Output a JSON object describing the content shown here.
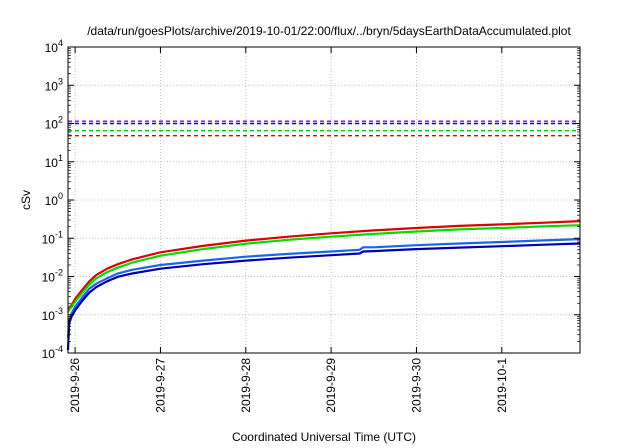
{
  "chart_data": {
    "type": "line",
    "title": "/data/run/goesPlots/archive/2019-10-01/22:00/flux/../bryn/5daysEarthDataAccumulated.plot",
    "xlabel": "Coordinated Universal Time (UTC)",
    "ylabel": "cSv",
    "yscale": "log",
    "ylim": [
      0.0001,
      10000
    ],
    "xlim": [
      "2019-09-25T22:00",
      "2019-10-01T22:00"
    ],
    "grid": true,
    "x_ticks": [
      "2019-9-26",
      "2019-9-27",
      "2019-9-28",
      "2019-9-29",
      "2019-9-30",
      "2019-10-1"
    ],
    "y_ticks": [
      {
        "value": 0.0001,
        "base": "10",
        "exp": "-4"
      },
      {
        "value": 0.001,
        "base": "10",
        "exp": "-3"
      },
      {
        "value": 0.01,
        "base": "10",
        "exp": "-2"
      },
      {
        "value": 0.1,
        "base": "10",
        "exp": "-1"
      },
      {
        "value": 1,
        "base": "10",
        "exp": "0"
      },
      {
        "value": 10,
        "base": "10",
        "exp": "1"
      },
      {
        "value": 100,
        "base": "10",
        "exp": "2"
      },
      {
        "value": 1000,
        "base": "10",
        "exp": "3"
      },
      {
        "value": 10000,
        "base": "10",
        "exp": "4"
      }
    ],
    "thresholds": [
      {
        "value": 115,
        "color": "#9900cc"
      },
      {
        "value": 100,
        "color": "#0000cc"
      },
      {
        "value": 65,
        "color": "#00cc00"
      },
      {
        "value": 48,
        "color": "#dd0000"
      }
    ],
    "series": [
      {
        "color": "#dd0000",
        "x": [
          "2019-09-25T22:00",
          "2019-09-25T23:00",
          "2019-09-26T00:00",
          "2019-09-26T02:00",
          "2019-09-26T04:00",
          "2019-09-26T06:00",
          "2019-09-26T09:00",
          "2019-09-26T12:00",
          "2019-09-26T16:00",
          "2019-09-27T00:00",
          "2019-09-27T12:00",
          "2019-09-28T00:00",
          "2019-09-28T12:00",
          "2019-09-29T00:00",
          "2019-09-29T12:00",
          "2019-09-30T00:00",
          "2019-09-30T12:00",
          "2019-10-01T00:00",
          "2019-10-01T12:00",
          "2019-10-01T22:00"
        ],
        "values": [
          0.0014,
          0.0018,
          0.0026,
          0.0045,
          0.0075,
          0.011,
          0.016,
          0.021,
          0.028,
          0.043,
          0.063,
          0.087,
          0.11,
          0.135,
          0.16,
          0.185,
          0.21,
          0.23,
          0.255,
          0.28
        ]
      },
      {
        "color": "#00dd00",
        "x": [
          "2019-09-25T22:00",
          "2019-09-25T23:00",
          "2019-09-26T00:00",
          "2019-09-26T02:00",
          "2019-09-26T04:00",
          "2019-09-26T06:00",
          "2019-09-26T09:00",
          "2019-09-26T12:00",
          "2019-09-26T16:00",
          "2019-09-27T00:00",
          "2019-09-27T12:00",
          "2019-09-28T00:00",
          "2019-09-28T12:00",
          "2019-09-29T00:00",
          "2019-09-29T12:00",
          "2019-09-30T00:00",
          "2019-09-30T12:00",
          "2019-10-01T00:00",
          "2019-10-01T12:00",
          "2019-10-01T22:00"
        ],
        "values": [
          0.0012,
          0.0016,
          0.0022,
          0.0037,
          0.0062,
          0.009,
          0.013,
          0.017,
          0.023,
          0.035,
          0.052,
          0.072,
          0.091,
          0.11,
          0.13,
          0.15,
          0.17,
          0.185,
          0.205,
          0.22
        ]
      },
      {
        "color": "#1a66e6",
        "x": [
          "2019-09-25T21:50",
          "2019-09-25T22:20",
          "2019-09-25T23:00",
          "2019-09-26T00:00",
          "2019-09-26T02:00",
          "2019-09-26T04:00",
          "2019-09-26T06:00",
          "2019-09-26T09:00",
          "2019-09-26T12:00",
          "2019-09-26T16:00",
          "2019-09-27T00:00",
          "2019-09-27T12:00",
          "2019-09-28T00:00",
          "2019-09-28T12:00",
          "2019-09-29T00:00",
          "2019-09-29T08:00",
          "2019-09-29T09:00",
          "2019-09-29T12:00",
          "2019-09-30T00:00",
          "2019-09-30T12:00",
          "2019-10-01T00:00",
          "2019-10-01T12:00",
          "2019-10-01T22:00"
        ],
        "values": [
          0.00025,
          0.0007,
          0.0011,
          0.0016,
          0.0028,
          0.0048,
          0.0065,
          0.009,
          0.012,
          0.015,
          0.02,
          0.026,
          0.033,
          0.039,
          0.045,
          0.05,
          0.058,
          0.058,
          0.066,
          0.073,
          0.08,
          0.088,
          0.095
        ]
      },
      {
        "color": "#0000b0",
        "x": [
          "2019-09-25T21:50",
          "2019-09-25T22:20",
          "2019-09-25T23:00",
          "2019-09-26T00:00",
          "2019-09-26T02:00",
          "2019-09-26T04:00",
          "2019-09-26T06:00",
          "2019-09-26T09:00",
          "2019-09-26T12:00",
          "2019-09-26T16:00",
          "2019-09-27T00:00",
          "2019-09-27T12:00",
          "2019-09-28T00:00",
          "2019-09-28T12:00",
          "2019-09-29T00:00",
          "2019-09-29T08:00",
          "2019-09-29T09:00",
          "2019-09-29T12:00",
          "2019-09-30T00:00",
          "2019-09-30T12:00",
          "2019-10-01T00:00",
          "2019-10-01T12:00",
          "2019-10-01T22:00"
        ],
        "values": [
          0.00012,
          0.0006,
          0.0009,
          0.0013,
          0.0023,
          0.0038,
          0.0053,
          0.0075,
          0.0098,
          0.012,
          0.016,
          0.021,
          0.026,
          0.031,
          0.036,
          0.04,
          0.045,
          0.046,
          0.052,
          0.057,
          0.062,
          0.068,
          0.073
        ]
      }
    ]
  }
}
